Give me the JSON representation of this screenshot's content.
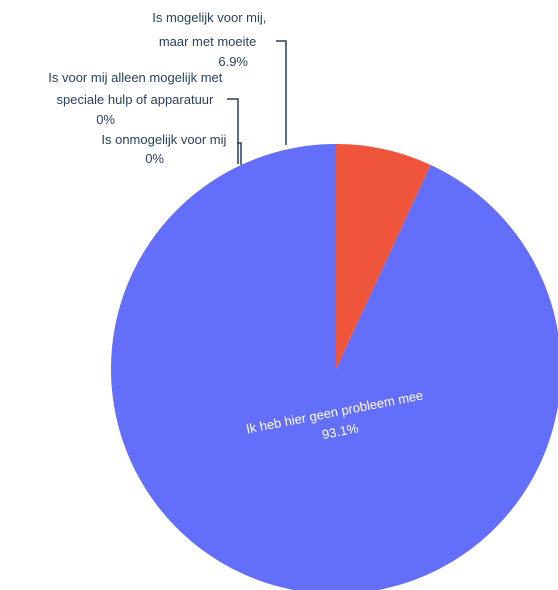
{
  "chart_data": {
    "type": "pie",
    "slices": [
      {
        "label": "Ik heb hier geen probleem mee",
        "percent_label": "93.1%",
        "value": 93.1,
        "color": "#636efa"
      },
      {
        "label": "Is mogelijk voor mij, maar met moeite",
        "label_lines": [
          "Is mogelijk voor mij,",
          "maar met moeite"
        ],
        "percent_label": "6.9%",
        "value": 6.9,
        "color": "#ef553b"
      },
      {
        "label": "Is voor mij alleen mogelijk met speciale hulp of apparatuur",
        "label_lines": [
          "Is voor mij alleen mogelijk met",
          "speciale hulp of apparatuur"
        ],
        "percent_label": "0%",
        "value": 0,
        "color": "#00cc96"
      },
      {
        "label": "Is onmogelijk voor mij",
        "label_lines": [
          "Is onmogelijk voor mij"
        ],
        "percent_label": "0%",
        "value": 0,
        "color": "#ab63fa"
      }
    ],
    "legend": "none"
  }
}
